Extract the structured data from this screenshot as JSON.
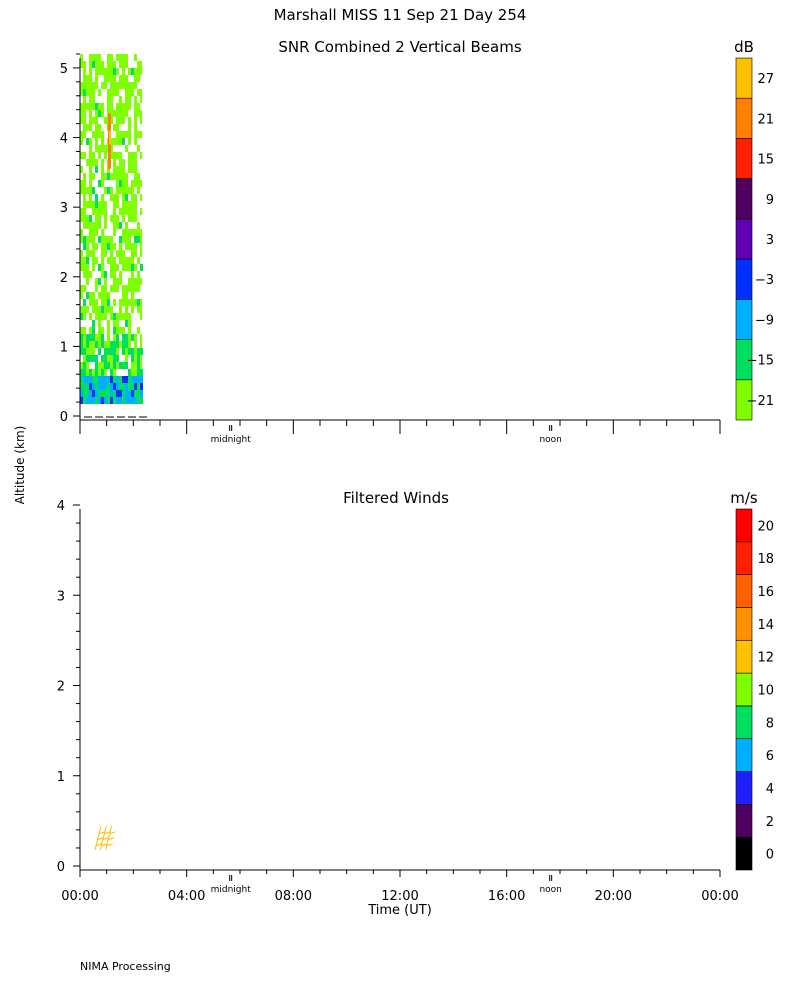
{
  "header": {
    "title": "Marshall MISS   11 Sep 21 Day 254",
    "footer": "NIMA Processing"
  },
  "colors": {
    "snr_bands": [
      "#7fff00",
      "#00e060",
      "#00b0ff",
      "#0030ff",
      "#6000b0",
      "#500060",
      "#ff2000",
      "#ff8000",
      "#ffc000"
    ],
    "wind_bands": [
      "#000000",
      "#500060",
      "#2020ff",
      "#00b0ff",
      "#00e060",
      "#80ff00",
      "#ffc000",
      "#ff9000",
      "#ff6000",
      "#ff2000",
      "#ff0000"
    ]
  },
  "chart_data": [
    {
      "type": "heatmap",
      "title": "SNR Combined 2 Vertical Beams",
      "ylabel": "Altitude (km)",
      "ylim": [
        0,
        5.2
      ],
      "yticks": [
        "0",
        "1",
        "2",
        "3",
        "4",
        "5"
      ],
      "xlim": [
        0,
        24
      ],
      "markers": [
        {
          "x": 7,
          "label": "midnight"
        },
        {
          "x": 19,
          "label": "noon"
        }
      ],
      "colorbar": {
        "unit": "dB",
        "min": -24,
        "max": 30,
        "step": 6,
        "tick_labels": [
          "-21",
          "-15",
          "-9",
          "-3",
          "3",
          "9",
          "15",
          "21",
          "27"
        ]
      },
      "data_extent": {
        "x_start": 0,
        "x_end": 2.33,
        "y_start": 0.25,
        "y_end": 5.2
      },
      "notes": "Mostly -21 to -15 dB (green); -9 dB near 0.3-0.6 km; isolated 21 dB near 4 km at ~01:00"
    },
    {
      "type": "scatter",
      "title": "Filtered Winds",
      "xlabel": "Time (UT)",
      "ylabel": "Altitude (km)",
      "ylim": [
        0,
        4
      ],
      "yticks": [
        "0",
        "1",
        "2",
        "3",
        "4"
      ],
      "xlim": [
        0,
        24
      ],
      "xticks": [
        "00:00",
        "04:00",
        "08:00",
        "12:00",
        "16:00",
        "20:00",
        "00:00"
      ],
      "markers": [
        {
          "x": 7,
          "label": "midnight"
        },
        {
          "x": 19,
          "label": "noon"
        }
      ],
      "colorbar": {
        "unit": "m/s",
        "min": 0,
        "max": 22,
        "step": 2,
        "tick_labels": [
          "0",
          "2",
          "4",
          "6",
          "8",
          "10",
          "12",
          "14",
          "16",
          "18",
          "20"
        ]
      },
      "wind_barbs": [
        {
          "x": 0.6,
          "y": 0.18,
          "speed": 12
        },
        {
          "x": 0.8,
          "y": 0.18,
          "speed": 12
        },
        {
          "x": 1.0,
          "y": 0.18,
          "speed": 12
        }
      ]
    }
  ]
}
